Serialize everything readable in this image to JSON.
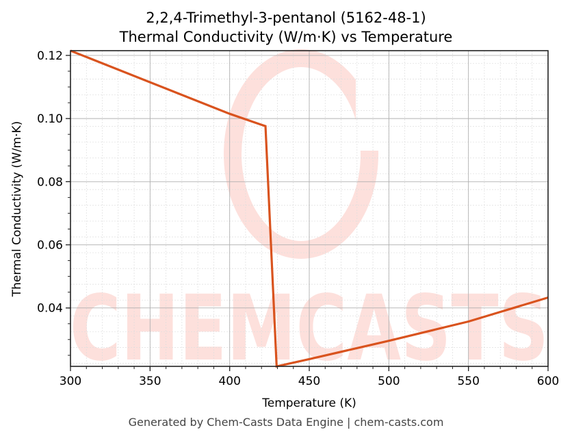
{
  "chart_data": {
    "type": "line",
    "title": "2,2,4-Trimethyl-3-pentanol (5162-48-1)",
    "subtitle": "Thermal Conductivity (W/m·K) vs Temperature",
    "xlabel": "Temperature (K)",
    "ylabel": "Thermal Conductivity (W/m·K)",
    "xlim": [
      300,
      600
    ],
    "ylim": [
      0.0215,
      0.1215
    ],
    "xticks": [
      300,
      350,
      400,
      450,
      500,
      550,
      600
    ],
    "xtick_labels": [
      "300",
      "350",
      "400",
      "450",
      "500",
      "550",
      "600"
    ],
    "yticks": [
      0.04,
      0.06,
      0.08,
      0.1,
      0.12
    ],
    "ytick_labels": [
      "0.04",
      "0.06",
      "0.08",
      "0.10",
      "0.12"
    ],
    "grid": true,
    "legend": null,
    "series": [
      {
        "name": "Thermal Conductivity",
        "color": "#d9531e",
        "x": [
          300,
          350,
          400,
          422.5,
          429.5,
          450,
          500,
          550,
          600
        ],
        "y": [
          0.1215,
          0.1115,
          0.1015,
          0.0976,
          0.0215,
          0.0238,
          0.0296,
          0.0357,
          0.0433
        ]
      }
    ]
  },
  "watermark": {
    "text": "CHEMCASTS",
    "color": "#fde0dc"
  },
  "footer": "Generated by Chem-Casts Data Engine | chem-casts.com"
}
